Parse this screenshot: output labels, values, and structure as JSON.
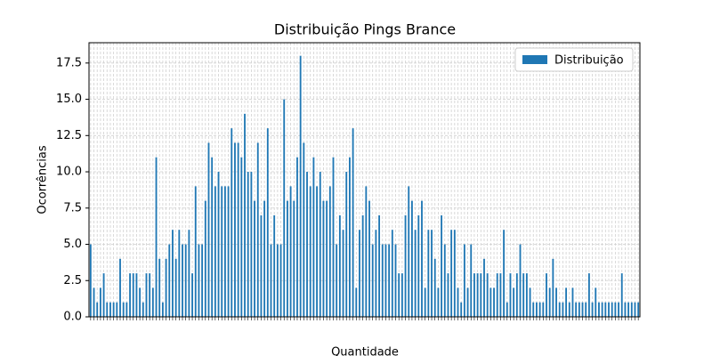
{
  "chart_data": {
    "type": "bar",
    "title": "Distribuição Pings Brance",
    "x_label": "Quantidade",
    "y_label": "Ocorrências",
    "series": [
      {
        "name": "Distribuição",
        "color": "#1f77b4",
        "values": [
          5,
          2,
          1,
          2,
          3,
          1,
          1,
          1,
          1,
          4,
          1,
          1,
          3,
          3,
          3,
          2,
          1,
          3,
          3,
          2,
          11,
          4,
          1,
          4,
          5,
          6,
          4,
          6,
          5,
          5,
          6,
          3,
          9,
          5,
          5,
          8,
          12,
          11,
          9,
          10,
          9,
          9,
          9,
          13,
          12,
          12,
          11,
          14,
          10,
          10,
          8,
          12,
          7,
          8,
          13,
          5,
          7,
          5,
          5,
          15,
          8,
          9,
          8,
          11,
          18,
          12,
          10,
          9,
          11,
          9,
          10,
          8,
          8,
          9,
          11,
          5,
          7,
          6,
          10,
          11,
          13,
          2,
          6,
          7,
          9,
          8,
          5,
          6,
          7,
          5,
          5,
          5,
          6,
          5,
          3,
          3,
          7,
          9,
          8,
          6,
          7,
          8,
          2,
          6,
          6,
          4,
          2,
          7,
          5,
          3,
          6,
          6,
          2,
          1,
          5,
          2,
          5,
          3,
          3,
          3,
          4,
          3,
          2,
          2,
          3,
          3,
          6,
          1,
          3,
          2,
          3,
          5,
          3,
          3,
          2,
          1,
          1,
          1,
          1,
          3,
          2,
          4,
          2,
          1,
          1,
          2,
          1,
          2,
          1,
          1,
          1,
          1,
          3,
          1,
          2,
          1,
          1,
          1,
          1,
          1,
          1,
          1,
          3,
          1,
          1,
          1,
          1,
          1
        ]
      }
    ],
    "ylim": [
      0,
      18.9
    ],
    "yticks": [
      {
        "value": 0,
        "label": "0.0"
      },
      2.5,
      {
        "value": 5,
        "label": "5.0"
      },
      7.5,
      {
        "value": 10,
        "label": "10.0"
      },
      12.5,
      {
        "value": 15,
        "label": "15.0"
      },
      17.5
    ],
    "grid": true,
    "legend": "upper right"
  }
}
